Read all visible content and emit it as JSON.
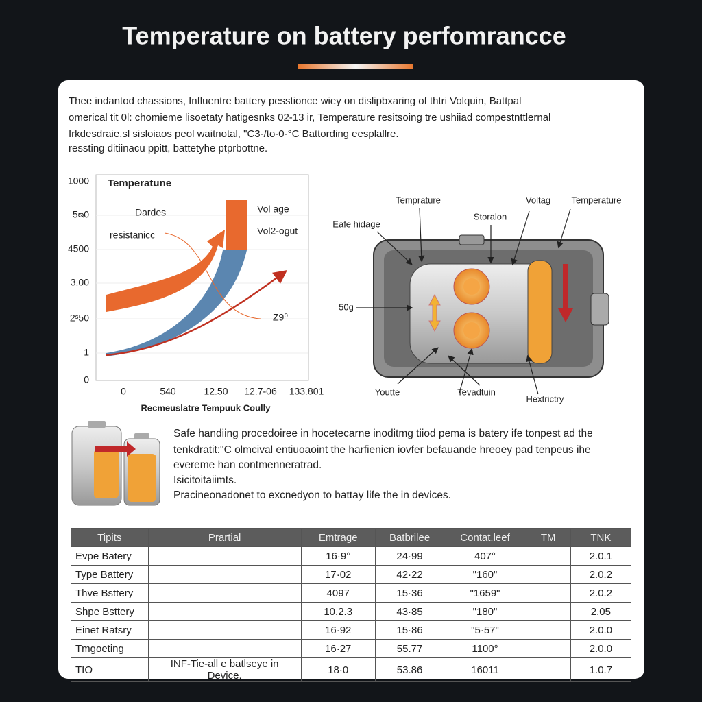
{
  "header": {
    "title": "Temperature on battery perfomrancce"
  },
  "intro": {
    "lines": [
      "Thee indantod chassions, Influentre battery pesstionce wiey on dislipbxaring of thtri Volquin, Battpal",
      "omerical tit 0l: chomieme lisoetaty hatigesnks 02-13 ir, Temperature resitsoing tre ushiiad compestnttlernal",
      "Irkdesdraie.sl sisloiaos peol waitnotal, \"C3-/to-0-°C Battording eesplallre.",
      "ressting ditiinacu ppitt, battetyhe ptprbottne."
    ]
  },
  "chart": {
    "title": "Temperatune",
    "yticks": [
      "1000",
      "5ᴓ0",
      "4500",
      "3.00",
      "2ˢ50",
      "1",
      "0"
    ],
    "xticks": [
      "0",
      "540",
      "12.50",
      "12.7-06",
      "133.801"
    ],
    "xlabel": "Recmeuslatre Tempuuk Coully",
    "labels": [
      "Dardes",
      "resistanicc",
      "Vol͏ age",
      "Vol2-ogut",
      "Z9⁰"
    ]
  },
  "diagram": {
    "labels": [
      "Temprature",
      "Voltag",
      "Temperature",
      "Eafe hidage",
      "Storalon",
      "50g",
      "Youtte",
      "Tevadtuin",
      "Hextrictry"
    ]
  },
  "paragraph": {
    "lines": [
      "Safe handiing procedoiree in hocetecarne inoditmg tiiod pema is batery ife tonpest ad the",
      "tenkdratit:\"C olmcival entiuoaoint the harfienicn iovfer befauande hreoey pad tenpeus ihe",
      "evereme han contmenneratrad.",
      "Isicitoitaiimts.",
      "Pracineonadonet to excnedyon to battay life the in devices."
    ]
  },
  "table": {
    "header": [
      "Tipits",
      "Prartial",
      "Emtrage",
      "Batbrilee",
      "Contat.leef",
      "TM",
      "TNK"
    ],
    "rows": [
      [
        "Evpe Batery",
        null,
        "16·9°",
        "24·99",
        "407°",
        null,
        "2.0.1"
      ],
      [
        "Type Battery",
        null,
        "17·02",
        "42·22",
        "\"160\"",
        null,
        "2.0.2"
      ],
      [
        "Thve Bsttery",
        null,
        "4097",
        "15·36",
        "\"1659\"",
        null,
        "2.0.2"
      ],
      [
        "Shpe Bsttery",
        null,
        "10.2.3",
        "43·85",
        "\"180\"",
        null,
        "2.05"
      ],
      [
        "Einet Ratsry",
        null,
        "16·92",
        "15·86",
        "\"5·57\"",
        null,
        "2.0.0"
      ],
      [
        "Tmgoeting",
        null,
        "16·27",
        "55.77",
        "1100°",
        null,
        "2.0.0"
      ],
      [
        "TIO",
        "INF-Tie-all e batlseye in Device.",
        "18·0",
        "53.86",
        "16011",
        null,
        "1.0.7"
      ]
    ]
  }
}
